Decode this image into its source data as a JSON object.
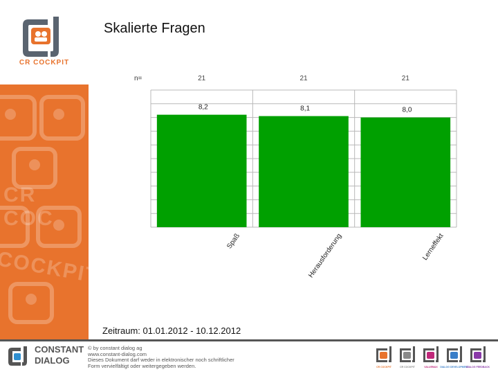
{
  "page": {
    "title": "Skalierte Fragen",
    "period": "Zeitraum: 01.01.2012 - 10.12.2012"
  },
  "brand": {
    "logo_text": "CR COCKPIT",
    "watermark_words": [
      "CR COC",
      "COCKPIT"
    ],
    "accent_color": "#e8732d",
    "bar_color": "#00a000"
  },
  "chart_data": {
    "type": "bar",
    "n_label": "n=",
    "categories": [
      "Spaß",
      "Herausforderung",
      "Lerneffekt"
    ],
    "n_values": [
      "21",
      "21",
      "21"
    ],
    "values": [
      8.2,
      8.1,
      8.0
    ],
    "value_labels": [
      "8,2",
      "8,1",
      "8,0"
    ],
    "ylim": [
      0,
      10
    ],
    "grid": true,
    "gridlines": 10
  },
  "footer": {
    "company_line1": "CONSTANT",
    "company_line2": "DIALOG",
    "copyright_lines": [
      "© by constant dialog ag",
      "www.constant-dialog.com",
      "Dieses Dokument darf weder in elektronischer noch schriftlicher",
      "Form vervielfältigt oder weitergegeben werden."
    ],
    "app_logos": [
      {
        "name": "CR COCKPIT",
        "color": "#e8732d"
      },
      {
        "name": "CR COCKPIT",
        "color": "#8a8a8a"
      },
      {
        "name": "VALUEMAX",
        "color": "#c0287a"
      },
      {
        "name": "DIALOG DEVELOPMENT",
        "color": "#3a7ec8"
      },
      {
        "name": "DIALOG FEEDBACK",
        "color": "#8a3aa8"
      }
    ]
  }
}
